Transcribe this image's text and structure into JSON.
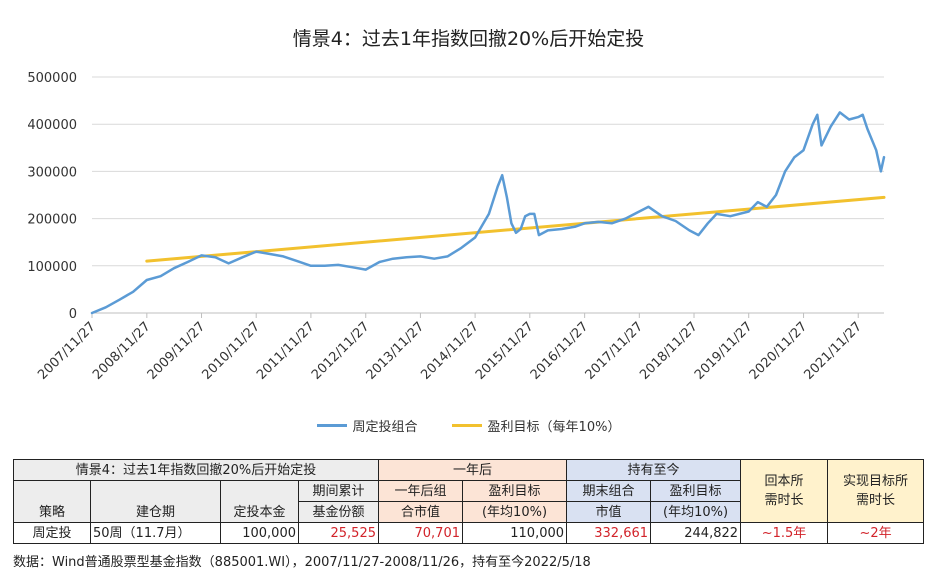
{
  "chart_data": {
    "type": "line",
    "title": "情景4：过去1年指数回撤20%后开始定投",
    "x_tick_labels": [
      "2007/11/27",
      "2008/11/27",
      "2009/11/27",
      "2010/11/27",
      "2011/11/27",
      "2012/11/27",
      "2013/11/27",
      "2014/11/27",
      "2015/11/27",
      "2016/11/27",
      "2017/11/27",
      "2018/11/27",
      "2019/11/27",
      "2020/11/27",
      "2021/11/27"
    ],
    "y_tick_labels": [
      "0",
      "100000",
      "200000",
      "300000",
      "400000",
      "500000"
    ],
    "ylim": [
      0,
      500000
    ],
    "xlim": [
      "2007-11-27",
      "2022-05-18"
    ],
    "grid": "horizontal",
    "legend_position": "bottom",
    "series": [
      {
        "name": "周定投组合",
        "color": "#5b9bd5",
        "points": [
          [
            "2007-11-27",
            0
          ],
          [
            "2008-02-27",
            12000
          ],
          [
            "2008-05-27",
            28000
          ],
          [
            "2008-08-27",
            45000
          ],
          [
            "2008-11-27",
            70000
          ],
          [
            "2009-02-27",
            78000
          ],
          [
            "2009-05-27",
            95000
          ],
          [
            "2009-08-27",
            108000
          ],
          [
            "2009-11-27",
            122000
          ],
          [
            "2010-02-27",
            118000
          ],
          [
            "2010-05-27",
            105000
          ],
          [
            "2010-08-27",
            118000
          ],
          [
            "2010-11-27",
            130000
          ],
          [
            "2011-02-27",
            125000
          ],
          [
            "2011-05-27",
            120000
          ],
          [
            "2011-08-27",
            110000
          ],
          [
            "2011-11-27",
            100000
          ],
          [
            "2012-02-27",
            100000
          ],
          [
            "2012-05-27",
            102000
          ],
          [
            "2012-08-27",
            97000
          ],
          [
            "2012-11-27",
            92000
          ],
          [
            "2013-02-27",
            108000
          ],
          [
            "2013-05-27",
            115000
          ],
          [
            "2013-08-27",
            118000
          ],
          [
            "2013-11-27",
            120000
          ],
          [
            "2014-02-27",
            115000
          ],
          [
            "2014-05-27",
            120000
          ],
          [
            "2014-08-27",
            138000
          ],
          [
            "2014-11-27",
            160000
          ],
          [
            "2015-02-27",
            210000
          ],
          [
            "2015-04-27",
            268000
          ],
          [
            "2015-05-27",
            292000
          ],
          [
            "2015-06-27",
            245000
          ],
          [
            "2015-07-27",
            190000
          ],
          [
            "2015-08-27",
            170000
          ],
          [
            "2015-09-27",
            178000
          ],
          [
            "2015-10-27",
            205000
          ],
          [
            "2015-11-27",
            210000
          ],
          [
            "2015-12-27",
            210000
          ],
          [
            "2016-01-27",
            165000
          ],
          [
            "2016-03-27",
            175000
          ],
          [
            "2016-06-27",
            178000
          ],
          [
            "2016-09-27",
            183000
          ],
          [
            "2016-11-27",
            190000
          ],
          [
            "2017-02-27",
            193000
          ],
          [
            "2017-05-27",
            190000
          ],
          [
            "2017-08-27",
            200000
          ],
          [
            "2017-11-27",
            215000
          ],
          [
            "2018-01-27",
            225000
          ],
          [
            "2018-04-27",
            205000
          ],
          [
            "2018-07-27",
            195000
          ],
          [
            "2018-10-27",
            175000
          ],
          [
            "2018-12-27",
            165000
          ],
          [
            "2019-02-27",
            190000
          ],
          [
            "2019-04-27",
            210000
          ],
          [
            "2019-07-27",
            205000
          ],
          [
            "2019-11-27",
            215000
          ],
          [
            "2020-01-27",
            235000
          ],
          [
            "2020-03-27",
            225000
          ],
          [
            "2020-05-27",
            250000
          ],
          [
            "2020-07-27",
            300000
          ],
          [
            "2020-09-27",
            330000
          ],
          [
            "2020-11-27",
            345000
          ],
          [
            "2021-01-27",
            400000
          ],
          [
            "2021-02-27",
            420000
          ],
          [
            "2021-03-27",
            355000
          ],
          [
            "2021-05-27",
            395000
          ],
          [
            "2021-07-27",
            425000
          ],
          [
            "2021-09-27",
            410000
          ],
          [
            "2021-11-27",
            415000
          ],
          [
            "2021-12-27",
            420000
          ],
          [
            "2022-01-27",
            390000
          ],
          [
            "2022-03-27",
            345000
          ],
          [
            "2022-04-27",
            300000
          ],
          [
            "2022-05-18",
            330000
          ]
        ]
      },
      {
        "name": "盈利目标（每年10%）",
        "color": "#f2c12e",
        "points": [
          [
            "2008-11-27",
            110000
          ],
          [
            "2022-05-18",
            244822
          ]
        ]
      }
    ]
  },
  "table": {
    "group_title": "情景4：过去1年指数回撤20%后开始定投",
    "group_one_year": "一年后",
    "group_hold": "持有至今",
    "col_recover_1": "回本所",
    "col_recover_2": "需时长",
    "col_target_1": "实现目标所",
    "col_target_2": "需时长",
    "h_strategy": "策略",
    "h_period": "建仓期",
    "h_principal": "定投本金",
    "h_shares_1": "期间累计",
    "h_shares_2": "基金份额",
    "h_1y_value_1": "一年后组",
    "h_1y_value_2": "合市值",
    "h_1y_target_1": "盈利目标",
    "h_1y_target_2": "(年均10%)",
    "h_end_value_1": "期末组合",
    "h_end_value_2": "市值",
    "h_end_target_1": "盈利目标",
    "h_end_target_2": "(年均10%)",
    "row": {
      "strategy": "周定投",
      "period": "50周（11.7月）",
      "principal": "100,000",
      "shares": "25,525",
      "value_1y": "70,701",
      "target_1y": "110,000",
      "value_end": "332,661",
      "target_end": "244,822",
      "recover_time": "~1.5年",
      "target_time": "~2年"
    }
  },
  "source": "数据：Wind普通股票型基金指数（885001.WI），2007/11/27-2008/11/26，持有至今2022/5/18"
}
